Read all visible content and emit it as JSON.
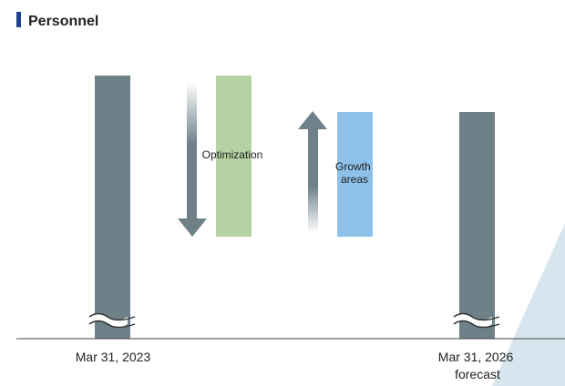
{
  "chart_data": {
    "type": "bar",
    "title": "Personnel",
    "categories": [
      "Mar 31, 2023",
      "Mar 31, 2026 forecast"
    ],
    "category_labels": [
      {
        "lines": [
          "Mar 31, 2023"
        ]
      },
      {
        "lines": [
          "Mar 31, 2026",
          "forecast"
        ]
      }
    ],
    "bars": [
      {
        "category": "Mar 31, 2023",
        "role": "start",
        "color": "#6e8189"
      },
      {
        "category": "Optimization",
        "role": "decrease",
        "color": "#b5d3a2"
      },
      {
        "category": "Growth areas",
        "role": "increase",
        "color": "#8dc1e9"
      },
      {
        "category": "Mar 31, 2026 forecast",
        "role": "end",
        "color": "#6e8189"
      }
    ],
    "annotations": {
      "optimization": {
        "label": "Optimization",
        "direction": "down"
      },
      "growth": {
        "label_lines": [
          "Growth",
          "areas"
        ],
        "direction": "up"
      }
    },
    "axis_break": true,
    "colors": {
      "title_accent": "#1f3f8f",
      "bar_gray": "#6e8189",
      "optimization": "#b5d3a2",
      "growth": "#8dc1e9",
      "arrow": "#6e8189",
      "corner_triangle": "#d7e6ee",
      "axis": "#444444",
      "text": "#222222"
    }
  }
}
